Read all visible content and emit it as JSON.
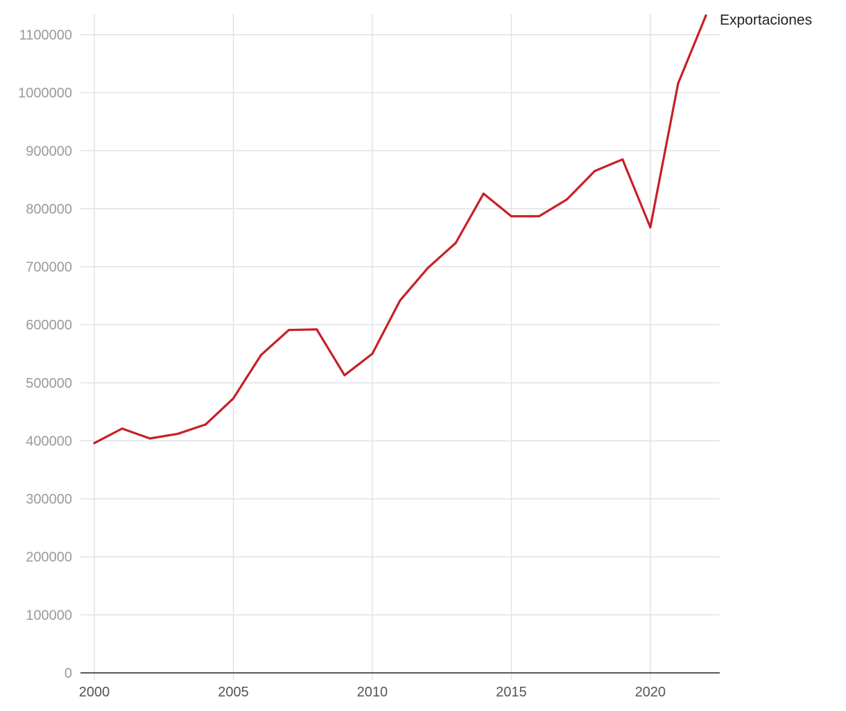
{
  "chart_data": {
    "type": "line",
    "title": "",
    "xlabel": "",
    "ylabel": "",
    "x": [
      2000,
      2001,
      2002,
      2003,
      2004,
      2005,
      2006,
      2007,
      2008,
      2009,
      2010,
      2011,
      2012,
      2013,
      2014,
      2015,
      2016,
      2017,
      2018,
      2019,
      2020,
      2021,
      2022
    ],
    "series": [
      {
        "name": "Exportaciones",
        "color": "#c62026",
        "values": [
          396000,
          421000,
          404000,
          412000,
          428000,
          473000,
          548000,
          591000,
          592000,
          513000,
          550000,
          642000,
          698000,
          741000,
          826000,
          787000,
          787000,
          816000,
          865000,
          885000,
          768000,
          1016000,
          1133000
        ]
      }
    ],
    "xlim": [
      2000,
      2022
    ],
    "ylim": [
      0,
      1100000
    ],
    "y_ticks": [
      "0",
      "100000",
      "200000",
      "300000",
      "400000",
      "500000",
      "600000",
      "700000",
      "800000",
      "900000",
      "1000000",
      "1100000"
    ],
    "x_ticks": [
      "2000",
      "2005",
      "2010",
      "2015",
      "2020"
    ],
    "grid": true,
    "legend_placement": "end-of-line label"
  }
}
